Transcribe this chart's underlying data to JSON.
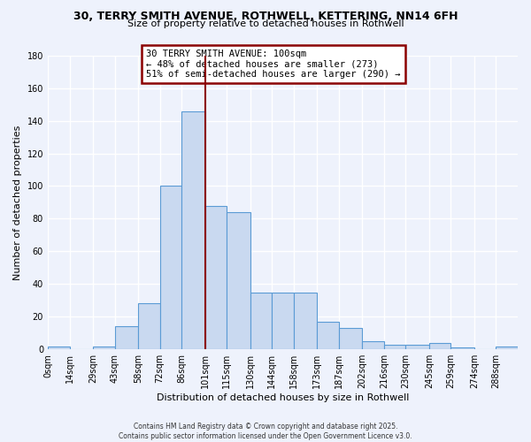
{
  "title_line1": "30, TERRY SMITH AVENUE, ROTHWELL, KETTERING, NN14 6FH",
  "title_line2": "Size of property relative to detached houses in Rothwell",
  "xlabel": "Distribution of detached houses by size in Rothwell",
  "ylabel": "Number of detached properties",
  "bar_labels": [
    "0sqm",
    "14sqm",
    "29sqm",
    "43sqm",
    "58sqm",
    "72sqm",
    "86sqm",
    "101sqm",
    "115sqm",
    "130sqm",
    "144sqm",
    "158sqm",
    "173sqm",
    "187sqm",
    "202sqm",
    "216sqm",
    "230sqm",
    "245sqm",
    "259sqm",
    "274sqm",
    "288sqm"
  ],
  "bar_values": [
    2,
    0,
    2,
    14,
    28,
    100,
    146,
    88,
    84,
    35,
    35,
    35,
    17,
    13,
    5,
    3,
    3,
    4,
    1,
    0,
    2
  ],
  "bin_edges": [
    0,
    14,
    29,
    43,
    58,
    72,
    86,
    101,
    115,
    130,
    144,
    158,
    173,
    187,
    202,
    216,
    230,
    245,
    259,
    274,
    288,
    302
  ],
  "bar_color": "#c9d9f0",
  "bar_edge_color": "#5b9bd5",
  "vline_x": 101,
  "vline_color": "#8b0000",
  "annotation_lines": [
    "30 TERRY SMITH AVENUE: 100sqm",
    "← 48% of detached houses are smaller (273)",
    "51% of semi-detached houses are larger (290) →"
  ],
  "annotation_box_color": "#8b0000",
  "annotation_fill": "#ffffff",
  "ylim": [
    0,
    180
  ],
  "yticks": [
    0,
    20,
    40,
    60,
    80,
    100,
    120,
    140,
    160,
    180
  ],
  "footer_text": "Contains HM Land Registry data © Crown copyright and database right 2025.\nContains public sector information licensed under the Open Government Licence v3.0.",
  "background_color": "#eef2fc",
  "grid_color": "#ffffff"
}
